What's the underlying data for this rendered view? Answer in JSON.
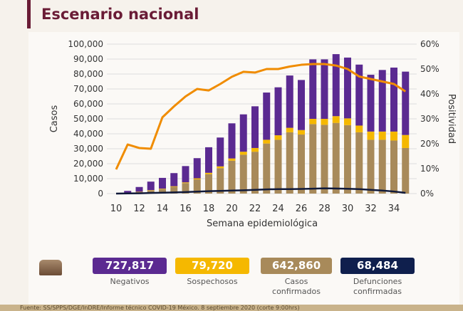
{
  "header": {
    "title": "Escenario nacional"
  },
  "chart_data": {
    "type": "bar",
    "title": "Escenario nacional",
    "xlabel": "Semana epidemiológica",
    "ylabel": "Casos",
    "y2label": "Positividad",
    "ylim": [
      0,
      100000
    ],
    "y2lim": [
      0,
      60
    ],
    "yticks": [
      "0",
      "10,000",
      "20,000",
      "30,000",
      "40,000",
      "50,000",
      "60,000",
      "70,000",
      "80,000",
      "90,000",
      "100,000"
    ],
    "y2ticks": [
      "0%",
      "10%",
      "20%",
      "30%",
      "40%",
      "50%",
      "60%"
    ],
    "xticks": [
      "10",
      "12",
      "14",
      "16",
      "18",
      "20",
      "22",
      "24",
      "26",
      "28",
      "30",
      "32",
      "34"
    ],
    "x": [
      10,
      11,
      12,
      13,
      14,
      15,
      16,
      17,
      18,
      19,
      20,
      21,
      22,
      23,
      24,
      25,
      26,
      27,
      28,
      29,
      30,
      31,
      32,
      33,
      34,
      35
    ],
    "series": [
      {
        "name": "Casos confirmados",
        "type": "bar",
        "color": "#a88a5a",
        "values": [
          0,
          500,
          1000,
          2000,
          3000,
          4500,
          7000,
          9500,
          13000,
          17000,
          22000,
          26000,
          28000,
          33500,
          36000,
          41000,
          39500,
          46500,
          46000,
          47300,
          45800,
          41000,
          36000,
          36000,
          35500,
          30500
        ]
      },
      {
        "name": "Sospechosos",
        "type": "bar",
        "color": "#f5b800",
        "values": [
          0,
          100,
          200,
          300,
          300,
          400,
          500,
          700,
          900,
          1200,
          1500,
          2000,
          2500,
          2500,
          3000,
          3000,
          3000,
          3500,
          4000,
          4500,
          4500,
          4500,
          5500,
          5500,
          6000,
          8700
        ]
      },
      {
        "name": "Negativos",
        "type": "bar",
        "color": "#5b2a91",
        "values": [
          0,
          1200,
          3200,
          5700,
          7200,
          8800,
          10900,
          13500,
          17100,
          19300,
          23500,
          25000,
          27900,
          31600,
          32100,
          35000,
          33500,
          39800,
          39800,
          41500,
          40700,
          40800,
          38000,
          41200,
          42800,
          42400
        ]
      },
      {
        "name": "Positividad",
        "type": "line",
        "axis": "right",
        "color": "#f08c00",
        "values": [
          9.7,
          19.7,
          18.3,
          18,
          30.6,
          35,
          39,
          42,
          41.4,
          44,
          46.9,
          48.9,
          48.6,
          50,
          50,
          51,
          51.7,
          52,
          52,
          51.4,
          50,
          47,
          46,
          45,
          44,
          41
        ]
      },
      {
        "name": "Defunciones",
        "type": "line",
        "axis": "left",
        "color": "#111a3a",
        "values": [
          0,
          100,
          200,
          400,
          600,
          800,
          1000,
          1300,
          1600,
          1800,
          2000,
          2200,
          2500,
          2800,
          3000,
          3000,
          3100,
          3300,
          3500,
          3400,
          3200,
          3000,
          2500,
          2000,
          1400,
          500
        ]
      }
    ]
  },
  "stats": [
    {
      "value": "727,817",
      "label": "Negativos",
      "color": "#5b2a91"
    },
    {
      "value": "79,720",
      "label": "Sospechosos",
      "color": "#f5b800"
    },
    {
      "value": "642,860",
      "label": "Casos confirmados",
      "color": "#a88a5a"
    },
    {
      "value": "68,484",
      "label": "Defunciones confirmadas",
      "color": "#0f1f4d"
    }
  ],
  "footer": {
    "source": "Fuente: SS/SPPS/DGE/InDRE/Informe técnico COVID-19 México. 8 septiembre 2020 (corte 9:00hrs)"
  }
}
